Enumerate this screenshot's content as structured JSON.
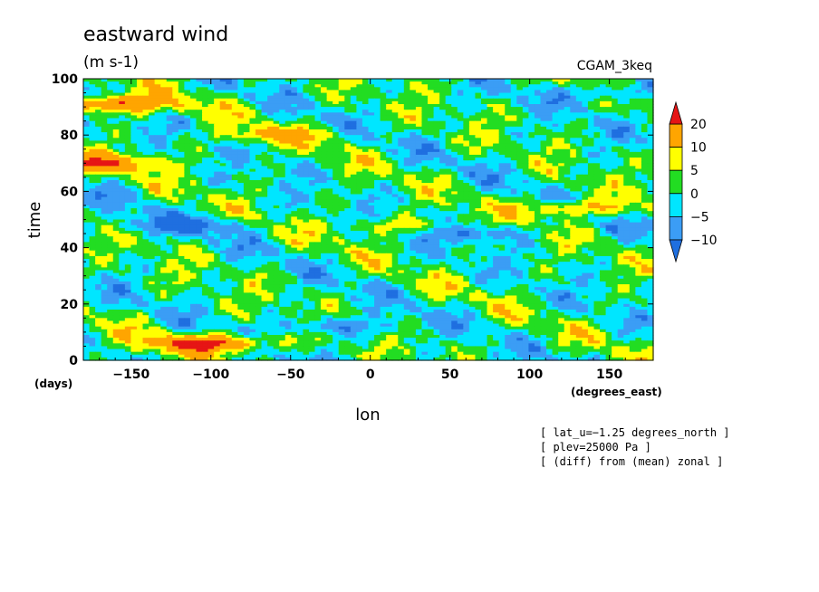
{
  "chart_data": {
    "type": "heatmap",
    "title": "eastward wind",
    "units": "(m s-1)",
    "source": "CGAM_3keq",
    "xlabel": "lon",
    "ylabel": "time",
    "x_units": "(degrees_east)",
    "y_units": "(days)",
    "xlim": [
      -180,
      177.5
    ],
    "ylim": [
      0,
      100
    ],
    "x_ticks": [
      -150,
      -100,
      -50,
      0,
      50,
      100,
      150
    ],
    "y_ticks": [
      0,
      20,
      40,
      60,
      80,
      100
    ],
    "x_tick_labels": [
      "−150",
      "−100",
      "−50",
      "0",
      "50",
      "100",
      "150"
    ],
    "y_tick_labels": [
      "0",
      "20",
      "40",
      "60",
      "80",
      "100"
    ],
    "colorbar": {
      "levels": [
        -10,
        -5,
        0,
        5,
        10,
        20
      ],
      "labels": [
        "−10",
        "−5",
        "0",
        "5",
        "10",
        "20"
      ],
      "colors": [
        "#1f6fe0",
        "#3b9df5",
        "#00e6ff",
        "#22dd22",
        "#ffff00",
        "#ffa500",
        "#e61515"
      ]
    },
    "notes": [
      "[ lat_u=−1.25 degrees_north ]",
      "[ plev=25000 Pa ]",
      "[ (diff) from (mean) zonal ]"
    ],
    "features": [
      {
        "lon": -100,
        "time": 6,
        "value": 22
      },
      {
        "lon": -160,
        "time": 91,
        "value": 21
      },
      {
        "lon": -170,
        "time": 70,
        "value": 18
      },
      {
        "lon": 130,
        "time": 54,
        "value": 13
      },
      {
        "lon": 20,
        "time": 47,
        "value": 9
      },
      {
        "lon": -60,
        "time": 80,
        "value": 10
      },
      {
        "lon": -120,
        "time": 48,
        "value": -11
      },
      {
        "lon": 60,
        "time": 45,
        "value": -10
      },
      {
        "lon": -20,
        "time": 12,
        "value": -9
      },
      {
        "lon": 150,
        "time": 95,
        "value": -8
      }
    ]
  }
}
